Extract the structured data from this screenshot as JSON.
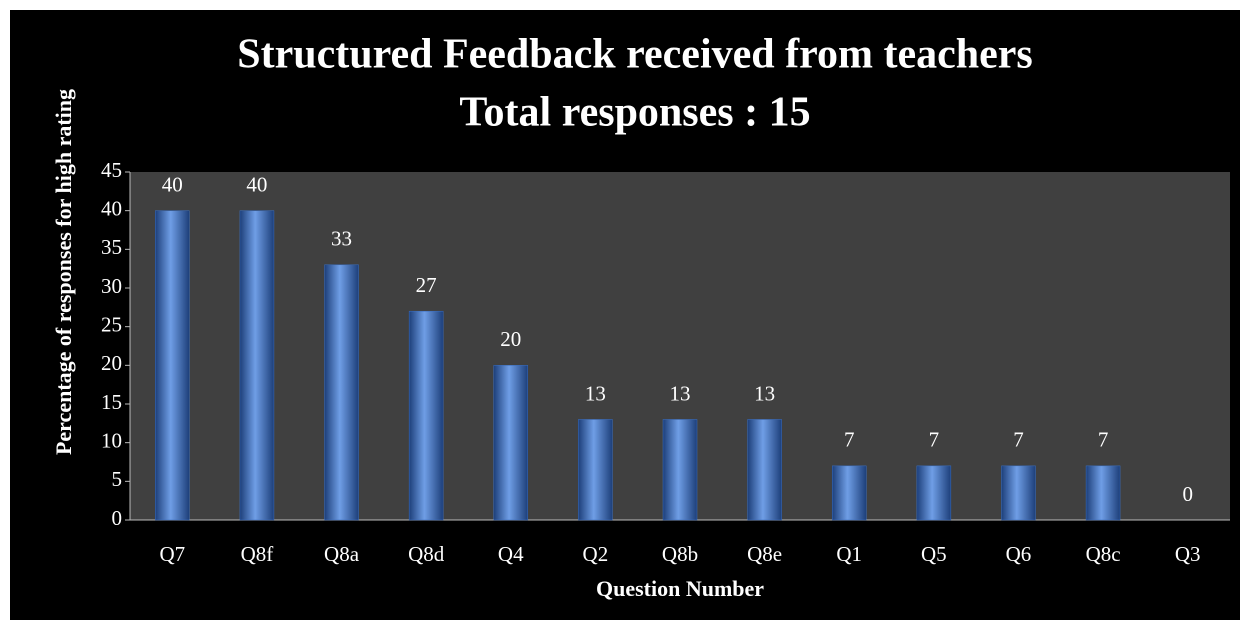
{
  "chart_data": {
    "type": "bar",
    "title": "Structured Feedback received from teachers",
    "subtitle": "Total responses : 15",
    "x_label": "Question Number",
    "y_label": "Percentage of responses for high rating",
    "categories": [
      "Q7",
      "Q8f",
      "Q8a",
      "Q8d",
      "Q4",
      "Q2",
      "Q8b",
      "Q8e",
      "Q1",
      "Q5",
      "Q6",
      "Q8c",
      "Q3"
    ],
    "values": [
      40,
      40,
      33,
      27,
      20,
      13,
      13,
      13,
      7,
      7,
      7,
      7,
      0
    ],
    "color": "#3a6fc4",
    "ylim": [
      0,
      45
    ],
    "yticks": [
      0,
      5,
      10,
      15,
      20,
      25,
      30,
      35,
      40,
      45
    ],
    "grid": false
  }
}
